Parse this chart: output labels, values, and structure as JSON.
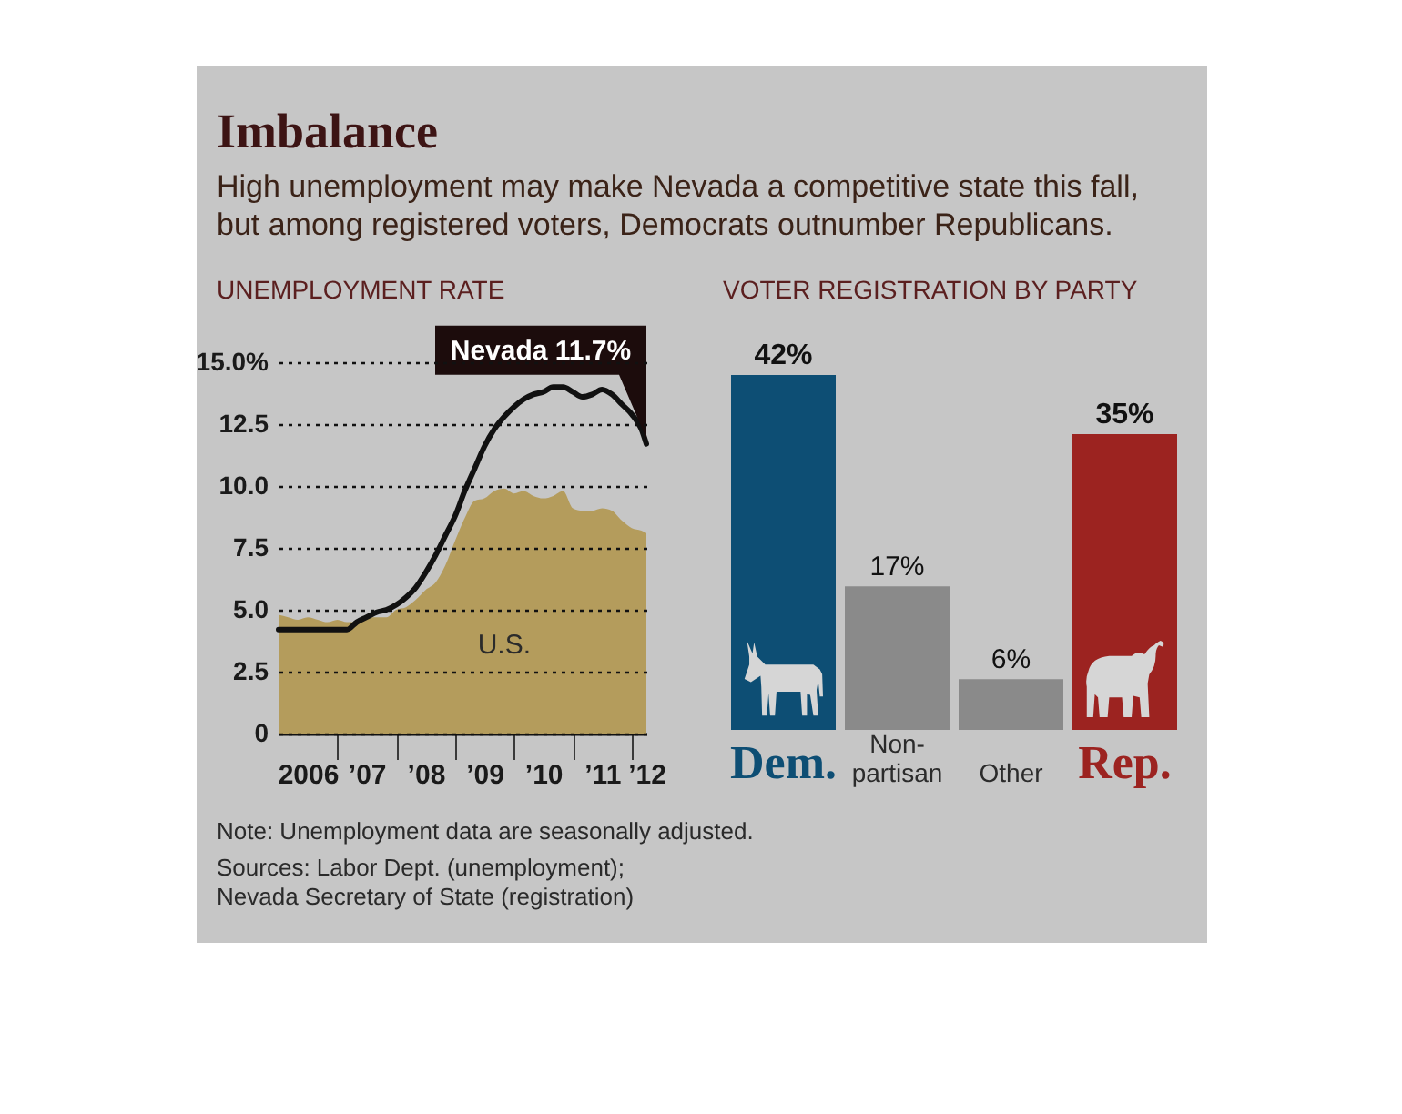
{
  "chart_data": [
    {
      "type": "other",
      "title": "Imbalance",
      "subtitle": "High unemployment may make Nevada a competitive state this fall, but among registered voters, Democrats outnumber Republicans."
    },
    {
      "type": "line",
      "title": "UNEMPLOYMENT RATE",
      "xlim": [
        "2006-01",
        "2012-04"
      ],
      "xticks": [
        {
          "value": "2006-07",
          "label": "2006"
        },
        {
          "value": "2007",
          "label": null
        },
        {
          "value": "2007-07",
          "label": "’07"
        },
        {
          "value": "2008",
          "label": null
        },
        {
          "value": "2008-07",
          "label": "’08"
        },
        {
          "value": "2009",
          "label": null
        },
        {
          "value": "2009-07",
          "label": "’09"
        },
        {
          "value": "2010",
          "label": null
        },
        {
          "value": "2010-07",
          "label": "’10"
        },
        {
          "value": "2011",
          "label": null
        },
        {
          "value": "2011-07",
          "label": "’11"
        },
        {
          "value": "2012",
          "label": null
        },
        {
          "value": "2012-04",
          "label": "’12"
        }
      ],
      "ylim": [
        0,
        15
      ],
      "yticks": [
        0,
        2.5,
        {
          "value": 5,
          "label": "5.0"
        },
        7.5,
        {
          "value": 10,
          "label": "10.0"
        },
        12.5,
        {
          "value": 15,
          "label": "15.0%"
        }
      ],
      "grid": "y",
      "x": [
        "2006-01",
        "2006-03",
        "2006-05",
        "2006-07",
        "2006-09",
        "2006-11",
        "2007-01",
        "2007-03",
        "2007-05",
        "2007-07",
        "2007-09",
        "2007-11",
        "2008-01",
        "2008-03",
        "2008-05",
        "2008-07",
        "2008-09",
        "2008-11",
        "2009-01",
        "2009-03",
        "2009-05",
        "2009-07",
        "2009-09",
        "2009-11",
        "2010-01",
        "2010-03",
        "2010-05",
        "2010-07",
        "2010-09",
        "2010-11",
        "2011-01",
        "2011-03",
        "2011-05",
        "2011-07",
        "2011-09",
        "2011-11",
        "2012-01",
        "2012-03",
        "2012-04"
      ],
      "series": [
        {
          "name": "U.S.",
          "type": "area",
          "color": "#b49c5c",
          "values": [
            4.8,
            4.7,
            4.6,
            4.7,
            4.6,
            4.5,
            4.6,
            4.5,
            4.5,
            4.7,
            4.7,
            4.7,
            5.0,
            5.1,
            5.4,
            5.8,
            6.1,
            6.8,
            7.8,
            8.7,
            9.4,
            9.5,
            9.8,
            9.9,
            9.7,
            9.8,
            9.6,
            9.5,
            9.6,
            9.8,
            9.1,
            9.0,
            9.0,
            9.1,
            9.0,
            8.6,
            8.3,
            8.2,
            8.1
          ]
        },
        {
          "type": "line",
          "color": "#111111",
          "values": [
            4.2,
            4.2,
            4.2,
            4.2,
            4.2,
            4.2,
            4.2,
            4.2,
            4.5,
            4.7,
            4.9,
            5.0,
            5.2,
            5.5,
            5.9,
            6.5,
            7.2,
            8.0,
            8.8,
            9.8,
            10.7,
            11.6,
            12.3,
            12.8,
            13.2,
            13.5,
            13.7,
            13.8,
            14.0,
            14.0,
            13.8,
            13.6,
            13.7,
            13.9,
            13.7,
            13.3,
            12.9,
            12.3,
            11.7
          ]
        }
      ],
      "annotations": [
        {
          "text": "Nevada 11.7%",
          "x": "2012-04",
          "y": 11.7
        }
      ]
    },
    {
      "type": "bar",
      "title": "VOTER REGISTRATION BY PARTY",
      "categories": [
        "Dem.",
        "Non-partisan",
        "Other",
        "Rep."
      ],
      "values": [
        42,
        17,
        6,
        35
      ],
      "colors": [
        "#0d4e74",
        "#8a8a8a",
        "#8a8a8a",
        "#9c2320"
      ],
      "value_labels": [
        "42%",
        "17%",
        "6%",
        "35%"
      ]
    },
    {
      "type": "other",
      "annotations": [
        "Note: Unemployment data are seasonally adjusted.",
        "Sources: Labor Dept. (unemployment); Nevada Secretary of State (registration)"
      ]
    }
  ]
}
